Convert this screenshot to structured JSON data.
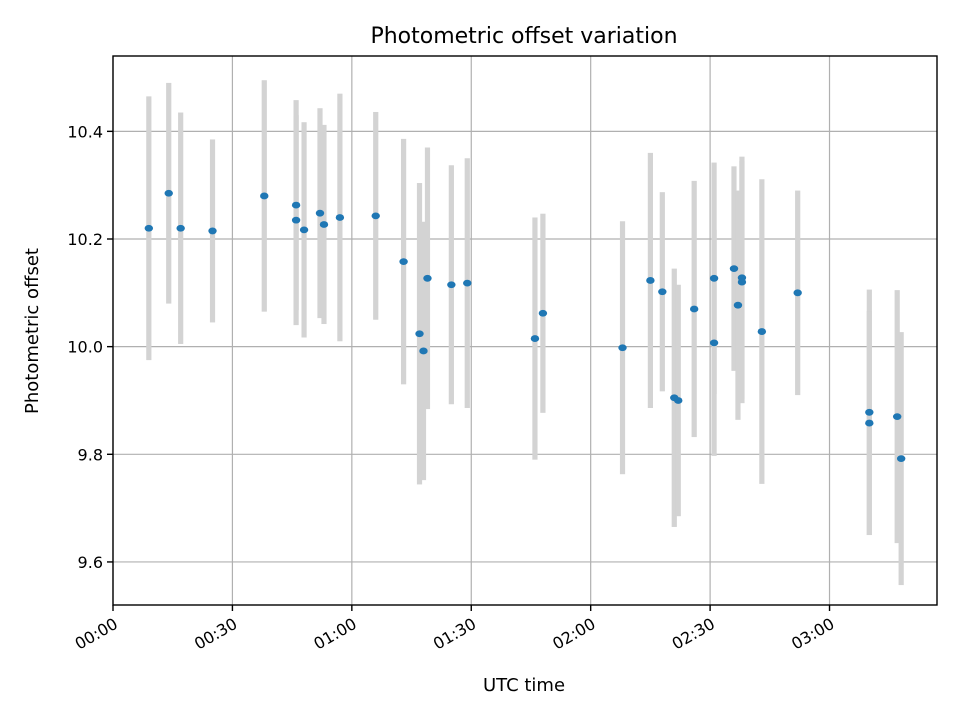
{
  "chart_data": {
    "type": "scatter",
    "title": "Photometric offset variation",
    "xlabel": "UTC time",
    "ylabel": "Photometric offset",
    "xlim": [
      "00:00",
      "03:27"
    ],
    "ylim": [
      9.52,
      10.54
    ],
    "grid": true,
    "x_ticks": [
      "00:00",
      "00:30",
      "01:00",
      "01:30",
      "02:00",
      "02:30",
      "03:00"
    ],
    "y_ticks": [
      9.6,
      9.8,
      10.0,
      10.2,
      10.4
    ],
    "y_tick_labels": [
      "9.6",
      "9.8",
      "10.0",
      "10.2",
      "10.4"
    ],
    "colors": {
      "point": "#1f77b4",
      "error_bar": "#d3d3d3"
    },
    "points": [
      {
        "x": "00:09",
        "y": 10.22,
        "err": 0.245
      },
      {
        "x": "00:14",
        "y": 10.285,
        "err": 0.205
      },
      {
        "x": "00:17",
        "y": 10.22,
        "err": 0.215
      },
      {
        "x": "00:25",
        "y": 10.215,
        "err": 0.17
      },
      {
        "x": "00:38",
        "y": 10.28,
        "err": 0.215
      },
      {
        "x": "00:46",
        "y": 10.235,
        "err": 0.195
      },
      {
        "x": "00:46",
        "y": 10.263,
        "err": 0.195
      },
      {
        "x": "00:48",
        "y": 10.217,
        "err": 0.2
      },
      {
        "x": "00:52",
        "y": 10.248,
        "err": 0.195
      },
      {
        "x": "00:53",
        "y": 10.227,
        "err": 0.185
      },
      {
        "x": "00:57",
        "y": 10.24,
        "err": 0.23
      },
      {
        "x": "01:06",
        "y": 10.243,
        "err": 0.193
      },
      {
        "x": "01:13",
        "y": 10.158,
        "err": 0.228
      },
      {
        "x": "01:17",
        "y": 10.024,
        "err": 0.28
      },
      {
        "x": "01:18",
        "y": 9.992,
        "err": 0.24
      },
      {
        "x": "01:19",
        "y": 10.127,
        "err": 0.243
      },
      {
        "x": "01:25",
        "y": 10.115,
        "err": 0.222
      },
      {
        "x": "01:29",
        "y": 10.118,
        "err": 0.232
      },
      {
        "x": "01:46",
        "y": 10.015,
        "err": 0.225
      },
      {
        "x": "01:48",
        "y": 10.062,
        "err": 0.185
      },
      {
        "x": "02:08",
        "y": 9.998,
        "err": 0.235
      },
      {
        "x": "02:15",
        "y": 10.123,
        "err": 0.237
      },
      {
        "x": "02:18",
        "y": 10.102,
        "err": 0.185
      },
      {
        "x": "02:21",
        "y": 9.905,
        "err": 0.24
      },
      {
        "x": "02:22",
        "y": 9.9,
        "err": 0.215
      },
      {
        "x": "02:26",
        "y": 10.07,
        "err": 0.238
      },
      {
        "x": "02:31",
        "y": 10.127,
        "err": 0.215
      },
      {
        "x": "02:31",
        "y": 10.007,
        "err": 0.21
      },
      {
        "x": "02:36",
        "y": 10.145,
        "err": 0.19
      },
      {
        "x": "02:37",
        "y": 10.077,
        "err": 0.213
      },
      {
        "x": "02:38",
        "y": 10.128,
        "err": 0.225
      },
      {
        "x": "02:38",
        "y": 10.12,
        "err": 0.225
      },
      {
        "x": "02:43",
        "y": 10.028,
        "err": 0.283
      },
      {
        "x": "02:52",
        "y": 10.1,
        "err": 0.19
      },
      {
        "x": "03:10",
        "y": 9.878,
        "err": 0.228
      },
      {
        "x": "03:10",
        "y": 9.858,
        "err": 0.208
      },
      {
        "x": "03:17",
        "y": 9.87,
        "err": 0.235
      },
      {
        "x": "03:18",
        "y": 9.792,
        "err": 0.235
      }
    ]
  }
}
